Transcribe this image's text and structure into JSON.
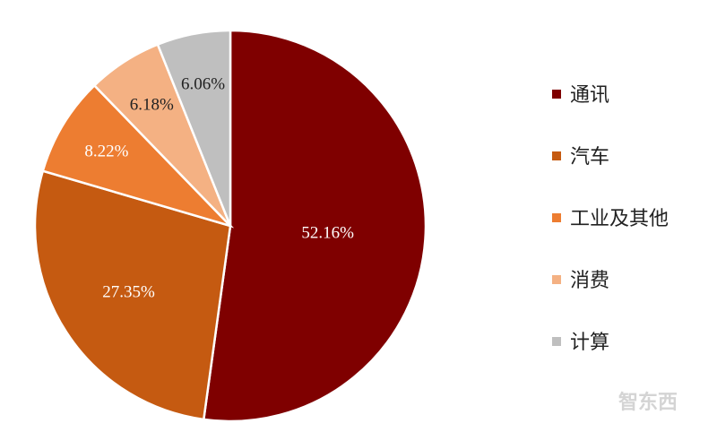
{
  "chart_data": {
    "type": "pie",
    "title": "",
    "slices": [
      {
        "label": "通讯",
        "value": 52.16,
        "display": "52.16%",
        "color": "#7f0000",
        "label_color": "#ffffff"
      },
      {
        "label": "汽车",
        "value": 27.35,
        "display": "27.35%",
        "color": "#c55a11",
        "label_color": "#ffffff"
      },
      {
        "label": "工业及其他",
        "value": 8.22,
        "display": "8.22%",
        "color": "#ed7d31",
        "label_color": "#ffffff"
      },
      {
        "label": "消费",
        "value": 6.18,
        "display": "6.18%",
        "color": "#f4b183",
        "label_color": "#222222"
      },
      {
        "label": "计算",
        "value": 6.06,
        "display": "6.06%",
        "color": "#bfbfbf",
        "label_color": "#222222"
      }
    ],
    "legend_position": "right"
  },
  "watermark": {
    "text": "智东西"
  }
}
